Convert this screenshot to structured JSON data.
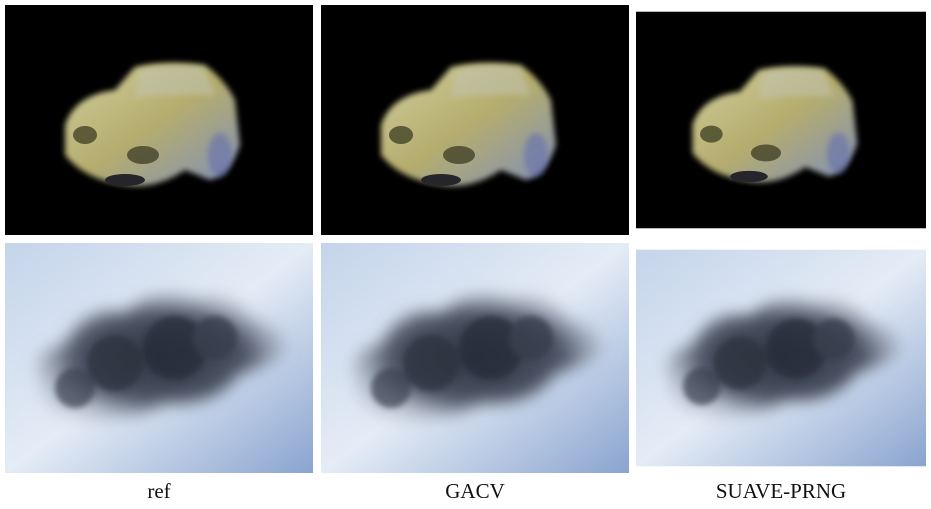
{
  "figure": {
    "captions": [
      "ref",
      "GACV",
      "SUAVE-PRNG"
    ]
  }
}
